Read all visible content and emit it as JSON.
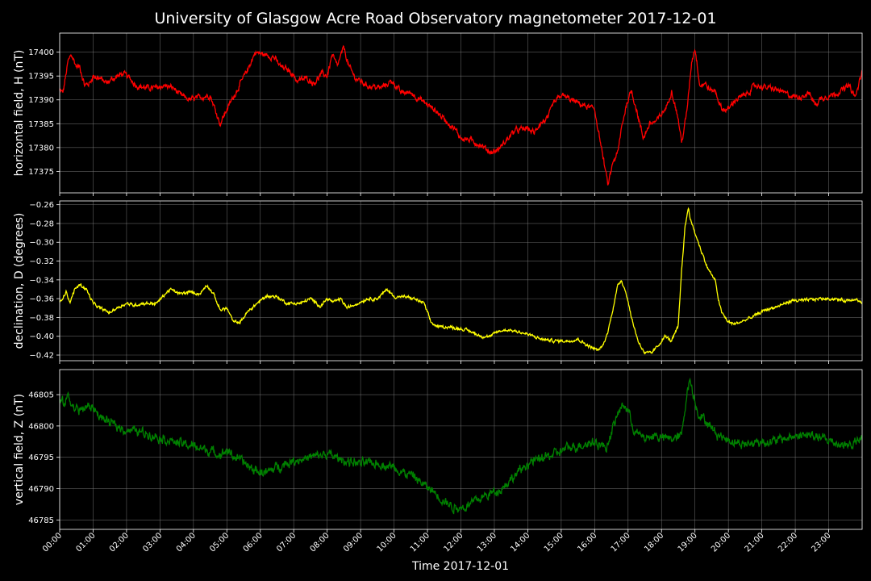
{
  "chart_data": {
    "type": "line",
    "title": "University of Glasgow Acre Road Observatory magnetometer 2017-12-01",
    "xlabel": "Time 2017-12-01",
    "x_tick_labels": [
      "00:00",
      "01:00",
      "02:00",
      "03:00",
      "04:00",
      "05:00",
      "06:00",
      "07:00",
      "08:00",
      "09:00",
      "10:00",
      "11:00",
      "12:00",
      "13:00",
      "14:00",
      "15:00",
      "16:00",
      "17:00",
      "18:00",
      "19:00",
      "20:00",
      "21:00",
      "22:00",
      "23:00"
    ],
    "xlim_hours": [
      0,
      24
    ],
    "grid": true,
    "panels": [
      {
        "ylabel": "horizontal field, H (nT)",
        "ylim": [
          17370.5,
          17404
        ],
        "yticks": [
          17375,
          17380,
          17385,
          17390,
          17395,
          17400
        ],
        "color": "#ff0000",
        "noise": 0.45,
        "series": [
          [
            0,
            17392
          ],
          [
            0.1,
            17391.5
          ],
          [
            0.25,
            17398
          ],
          [
            0.35,
            17399.5
          ],
          [
            0.5,
            17397
          ],
          [
            0.6,
            17397
          ],
          [
            0.75,
            17393
          ],
          [
            0.9,
            17393.5
          ],
          [
            1.0,
            17395
          ],
          [
            1.2,
            17394.5
          ],
          [
            1.4,
            17393.5
          ],
          [
            1.6,
            17394.5
          ],
          [
            1.9,
            17395.5
          ],
          [
            2.1,
            17394.5
          ],
          [
            2.3,
            17393
          ],
          [
            2.6,
            17392.5
          ],
          [
            2.9,
            17392.5
          ],
          [
            3.1,
            17393
          ],
          [
            3.4,
            17392.5
          ],
          [
            3.6,
            17391
          ],
          [
            3.9,
            17390
          ],
          [
            4.2,
            17390.5
          ],
          [
            4.5,
            17391
          ],
          [
            4.65,
            17388
          ],
          [
            4.8,
            17385
          ],
          [
            5.0,
            17388
          ],
          [
            5.3,
            17392
          ],
          [
            5.6,
            17396
          ],
          [
            5.85,
            17400
          ],
          [
            6.1,
            17399.5
          ],
          [
            6.4,
            17399
          ],
          [
            6.6,
            17397
          ],
          [
            6.9,
            17396
          ],
          [
            7.1,
            17394
          ],
          [
            7.4,
            17394.5
          ],
          [
            7.6,
            17393.5
          ],
          [
            7.85,
            17395.5
          ],
          [
            8.0,
            17395
          ],
          [
            8.15,
            17399.5
          ],
          [
            8.3,
            17397
          ],
          [
            8.5,
            17401
          ],
          [
            8.65,
            17397
          ],
          [
            8.85,
            17394.5
          ],
          [
            9.2,
            17393
          ],
          [
            9.6,
            17392.5
          ],
          [
            9.95,
            17394
          ],
          [
            10.2,
            17391.5
          ],
          [
            10.5,
            17391.5
          ],
          [
            10.8,
            17390
          ],
          [
            11.2,
            17388
          ],
          [
            11.5,
            17386
          ],
          [
            11.8,
            17384
          ],
          [
            12.0,
            17382
          ],
          [
            12.3,
            17381.5
          ],
          [
            12.6,
            17380.5
          ],
          [
            12.9,
            17379
          ],
          [
            13.1,
            17379.5
          ],
          [
            13.3,
            17381
          ],
          [
            13.6,
            17383.5
          ],
          [
            14.0,
            17384
          ],
          [
            14.2,
            17383
          ],
          [
            14.35,
            17385
          ],
          [
            14.6,
            17386
          ],
          [
            14.75,
            17389
          ],
          [
            15.0,
            17391
          ],
          [
            15.3,
            17390
          ],
          [
            15.6,
            17389
          ],
          [
            15.8,
            17388.5
          ],
          [
            16.0,
            17388
          ],
          [
            16.15,
            17382
          ],
          [
            16.3,
            17376
          ],
          [
            16.4,
            17372
          ],
          [
            16.55,
            17377
          ],
          [
            16.7,
            17379
          ],
          [
            16.8,
            17384
          ],
          [
            16.95,
            17389
          ],
          [
            17.1,
            17392
          ],
          [
            17.25,
            17388
          ],
          [
            17.45,
            17382
          ],
          [
            17.65,
            17385
          ],
          [
            17.85,
            17385.5
          ],
          [
            18.05,
            17387.5
          ],
          [
            18.15,
            17388.5
          ],
          [
            18.3,
            17392
          ],
          [
            18.4,
            17389
          ],
          [
            18.5,
            17386
          ],
          [
            18.6,
            17381
          ],
          [
            18.75,
            17387
          ],
          [
            18.9,
            17398
          ],
          [
            19.0,
            17401
          ],
          [
            19.15,
            17393
          ],
          [
            19.3,
            17393.5
          ],
          [
            19.45,
            17392
          ],
          [
            19.6,
            17392
          ],
          [
            19.8,
            17388
          ],
          [
            20.0,
            17388
          ],
          [
            20.2,
            17390
          ],
          [
            20.5,
            17391
          ],
          [
            20.8,
            17393
          ],
          [
            21.2,
            17392.5
          ],
          [
            21.5,
            17392
          ],
          [
            21.8,
            17391
          ],
          [
            22.1,
            17390.5
          ],
          [
            22.4,
            17391.5
          ],
          [
            22.6,
            17389
          ],
          [
            22.8,
            17390.5
          ],
          [
            23.1,
            17391
          ],
          [
            23.4,
            17392
          ],
          [
            23.6,
            17393
          ],
          [
            23.8,
            17390.5
          ],
          [
            24.0,
            17396
          ]
        ]
      },
      {
        "ylabel": "declination, D (degrees)",
        "ylim": [
          -0.426,
          -0.256
        ],
        "yticks": [
          -0.42,
          -0.4,
          -0.38,
          -0.36,
          -0.34,
          -0.32,
          -0.3,
          -0.28,
          -0.26
        ],
        "ytick_labels": [
          "−0.42",
          "−0.40",
          "−0.38",
          "−0.36",
          "−0.34",
          "−0.32",
          "−0.30",
          "−0.28",
          "−0.26"
        ],
        "color": "#ffff00",
        "noise": 0.0012,
        "series": [
          [
            0,
            -0.365
          ],
          [
            0.1,
            -0.358
          ],
          [
            0.2,
            -0.352
          ],
          [
            0.3,
            -0.365
          ],
          [
            0.45,
            -0.35
          ],
          [
            0.6,
            -0.345
          ],
          [
            0.8,
            -0.35
          ],
          [
            1.0,
            -0.365
          ],
          [
            1.2,
            -0.37
          ],
          [
            1.5,
            -0.375
          ],
          [
            1.7,
            -0.37
          ],
          [
            2.0,
            -0.365
          ],
          [
            2.2,
            -0.367
          ],
          [
            2.5,
            -0.365
          ],
          [
            2.9,
            -0.365
          ],
          [
            3.1,
            -0.357
          ],
          [
            3.3,
            -0.35
          ],
          [
            3.6,
            -0.355
          ],
          [
            3.9,
            -0.353
          ],
          [
            4.2,
            -0.355
          ],
          [
            4.4,
            -0.345
          ],
          [
            4.6,
            -0.355
          ],
          [
            4.8,
            -0.372
          ],
          [
            5.0,
            -0.37
          ],
          [
            5.2,
            -0.385
          ],
          [
            5.4,
            -0.385
          ],
          [
            5.6,
            -0.375
          ],
          [
            5.9,
            -0.365
          ],
          [
            6.2,
            -0.357
          ],
          [
            6.5,
            -0.358
          ],
          [
            6.8,
            -0.365
          ],
          [
            7.2,
            -0.365
          ],
          [
            7.5,
            -0.36
          ],
          [
            7.8,
            -0.368
          ],
          [
            8.0,
            -0.36
          ],
          [
            8.2,
            -0.364
          ],
          [
            8.4,
            -0.36
          ],
          [
            8.6,
            -0.37
          ],
          [
            8.9,
            -0.365
          ],
          [
            9.2,
            -0.36
          ],
          [
            9.5,
            -0.36
          ],
          [
            9.8,
            -0.35
          ],
          [
            10.0,
            -0.358
          ],
          [
            10.3,
            -0.358
          ],
          [
            10.6,
            -0.36
          ],
          [
            10.9,
            -0.365
          ],
          [
            11.1,
            -0.385
          ],
          [
            11.3,
            -0.39
          ],
          [
            11.6,
            -0.39
          ],
          [
            12.0,
            -0.392
          ],
          [
            12.3,
            -0.395
          ],
          [
            12.6,
            -0.4
          ],
          [
            12.9,
            -0.4
          ],
          [
            13.1,
            -0.395
          ],
          [
            13.4,
            -0.393
          ],
          [
            13.7,
            -0.395
          ],
          [
            14.0,
            -0.398
          ],
          [
            14.4,
            -0.403
          ],
          [
            14.8,
            -0.405
          ],
          [
            15.2,
            -0.405
          ],
          [
            15.5,
            -0.403
          ],
          [
            15.8,
            -0.41
          ],
          [
            16.1,
            -0.415
          ],
          [
            16.25,
            -0.41
          ],
          [
            16.4,
            -0.395
          ],
          [
            16.55,
            -0.37
          ],
          [
            16.7,
            -0.345
          ],
          [
            16.8,
            -0.34
          ],
          [
            16.95,
            -0.355
          ],
          [
            17.1,
            -0.38
          ],
          [
            17.3,
            -0.405
          ],
          [
            17.5,
            -0.418
          ],
          [
            17.7,
            -0.418
          ],
          [
            17.9,
            -0.41
          ],
          [
            18.1,
            -0.4
          ],
          [
            18.3,
            -0.405
          ],
          [
            18.5,
            -0.39
          ],
          [
            18.6,
            -0.33
          ],
          [
            18.7,
            -0.285
          ],
          [
            18.8,
            -0.263
          ],
          [
            18.9,
            -0.28
          ],
          [
            19.05,
            -0.295
          ],
          [
            19.2,
            -0.31
          ],
          [
            19.35,
            -0.325
          ],
          [
            19.5,
            -0.335
          ],
          [
            19.6,
            -0.34
          ],
          [
            19.7,
            -0.36
          ],
          [
            19.8,
            -0.375
          ],
          [
            20.0,
            -0.385
          ],
          [
            20.2,
            -0.387
          ],
          [
            20.5,
            -0.383
          ],
          [
            20.8,
            -0.378
          ],
          [
            21.1,
            -0.372
          ],
          [
            21.5,
            -0.368
          ],
          [
            21.9,
            -0.362
          ],
          [
            22.3,
            -0.362
          ],
          [
            22.7,
            -0.36
          ],
          [
            23.1,
            -0.36
          ],
          [
            23.5,
            -0.362
          ],
          [
            23.8,
            -0.36
          ],
          [
            24.0,
            -0.365
          ]
        ]
      },
      {
        "ylabel": "vertical field, Z (nT)",
        "ylim": [
          46783.5,
          46809
        ],
        "yticks": [
          46785,
          46790,
          46795,
          46800,
          46805
        ],
        "color": "#008000",
        "noise": 0.55,
        "series": [
          [
            0,
            46804
          ],
          [
            0.15,
            46803.5
          ],
          [
            0.25,
            46805
          ],
          [
            0.4,
            46803
          ],
          [
            0.6,
            46802.5
          ],
          [
            0.8,
            46803
          ],
          [
            1.0,
            46803
          ],
          [
            1.2,
            46801.5
          ],
          [
            1.5,
            46800.5
          ],
          [
            1.9,
            46799.5
          ],
          [
            2.3,
            46799.2
          ],
          [
            2.8,
            46798.5
          ],
          [
            3.1,
            46798
          ],
          [
            3.4,
            46797.5
          ],
          [
            3.8,
            46797
          ],
          [
            4.2,
            46796.5
          ],
          [
            4.5,
            46796
          ],
          [
            4.8,
            46795.5
          ],
          [
            5.0,
            46796
          ],
          [
            5.4,
            46794.5
          ],
          [
            5.8,
            46793
          ],
          [
            6.2,
            46792.5
          ],
          [
            6.5,
            46793.5
          ],
          [
            7.0,
            46794.5
          ],
          [
            7.5,
            46795
          ],
          [
            8.0,
            46795.5
          ],
          [
            8.5,
            46794.5
          ],
          [
            9.0,
            46794
          ],
          [
            9.5,
            46794
          ],
          [
            10.0,
            46793.5
          ],
          [
            10.3,
            46792.5
          ],
          [
            10.6,
            46792
          ],
          [
            10.9,
            46790.5
          ],
          [
            11.2,
            46789.5
          ],
          [
            11.5,
            46788
          ],
          [
            11.8,
            46787
          ],
          [
            12.1,
            46787
          ],
          [
            12.4,
            46788
          ],
          [
            12.8,
            46789
          ],
          [
            13.2,
            46790
          ],
          [
            13.6,
            46792
          ],
          [
            14.0,
            46794
          ],
          [
            14.5,
            46795
          ],
          [
            14.8,
            46795.5
          ],
          [
            15.2,
            46796.5
          ],
          [
            15.6,
            46797
          ],
          [
            16.0,
            46797.5
          ],
          [
            16.2,
            46797
          ],
          [
            16.35,
            46796.5
          ],
          [
            16.5,
            46799
          ],
          [
            16.7,
            46802
          ],
          [
            16.85,
            46803.5
          ],
          [
            17.0,
            46802.5
          ],
          [
            17.2,
            46799
          ],
          [
            17.5,
            46798
          ],
          [
            17.8,
            46798.5
          ],
          [
            18.1,
            46798
          ],
          [
            18.4,
            46798
          ],
          [
            18.6,
            46798.5
          ],
          [
            18.75,
            46805
          ],
          [
            18.85,
            46807.5
          ],
          [
            18.95,
            46805
          ],
          [
            19.1,
            46802
          ],
          [
            19.3,
            46801
          ],
          [
            19.6,
            46799
          ],
          [
            19.9,
            46798
          ],
          [
            20.2,
            46797.5
          ],
          [
            20.5,
            46797
          ],
          [
            20.9,
            46797.5
          ],
          [
            21.3,
            46797.5
          ],
          [
            21.7,
            46798
          ],
          [
            22.1,
            46798.5
          ],
          [
            22.5,
            46798.5
          ],
          [
            22.8,
            46798
          ],
          [
            23.1,
            46797.5
          ],
          [
            23.4,
            46797
          ],
          [
            23.7,
            46797
          ],
          [
            24.0,
            46798
          ]
        ]
      }
    ]
  }
}
